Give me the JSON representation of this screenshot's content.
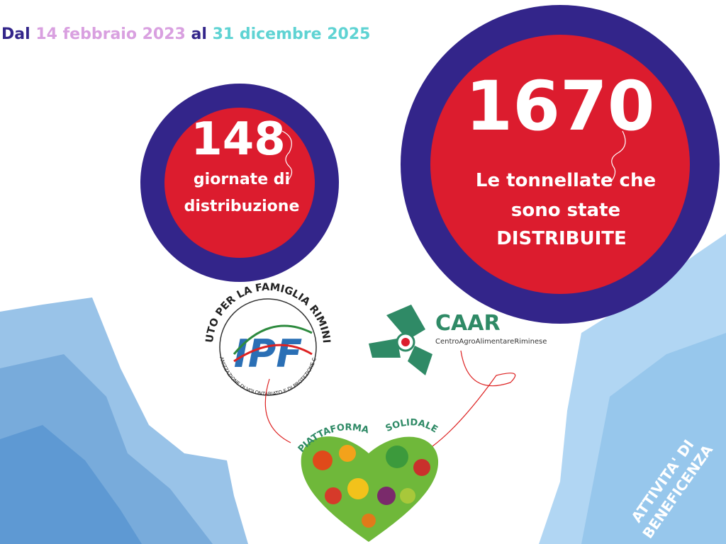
{
  "header": {
    "prefix": "Dal",
    "start_date": "14 febbraio 2023",
    "connector": "al",
    "end_date": "31 dicembre 2025"
  },
  "stats": [
    {
      "number": 148,
      "label_lines": [
        "giornate di",
        "distribuzione"
      ]
    },
    {
      "number": 1670,
      "label_lines": [
        "Le tonnellate che",
        "sono state",
        "DISTRIBUITE"
      ]
    }
  ],
  "logos": {
    "ipf": {
      "ring_top": "ISTITUTO PER LA FAMIGLIA RIMINI ODV",
      "ring_bottom": "ORGANIZZAZIONE DI VOLONTARIATO E DI PROTEZIONE CIVILE",
      "monogram": "IPF"
    },
    "caar": {
      "name": "CAAR",
      "full_name": "CentroAgroAlimentareRiminese"
    },
    "platform": {
      "word1": "PIATTAFORMA",
      "word2": "SOLIDALE"
    }
  },
  "badge": {
    "lines": [
      "ATTIVITA' DI",
      "BENEFICENZA"
    ]
  }
}
